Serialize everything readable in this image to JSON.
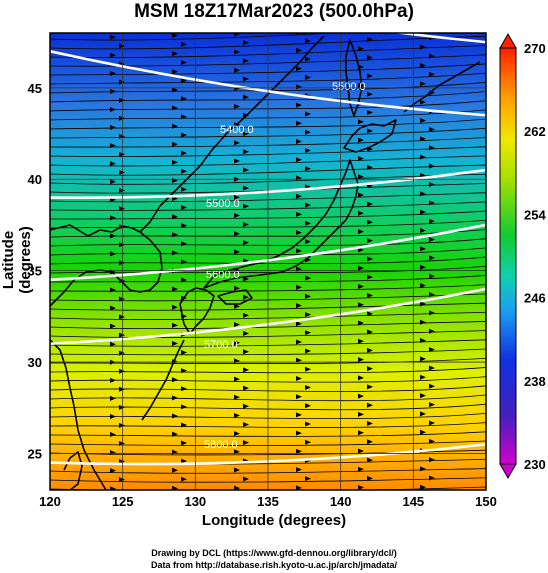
{
  "title": "MSM 18Z17Mar2023 (500.0hPa)",
  "x_axis": {
    "label": "Longitude (degrees)",
    "ticks": [
      "120",
      "125",
      "130",
      "135",
      "140",
      "145",
      "150"
    ]
  },
  "y_axis": {
    "label": "Latitude  (degrees)",
    "ticks": [
      "25",
      "30",
      "35",
      "40",
      "45"
    ]
  },
  "colorbar": {
    "ticks": [
      "230",
      "238",
      "246",
      "254",
      "262",
      "270"
    ],
    "min": 230,
    "max": 270
  },
  "contour_labels": [
    "5500.0",
    "5400.0",
    "5500.0",
    "5600.0",
    "5700.0",
    "5800.0"
  ],
  "credits": {
    "line1": "Drawing by DCL (https://www.gfd-dennou.org/library/dcl/)",
    "line2": "Data from http://database.rish.kyoto-u.ac.jp/arch/jmadata/"
  },
  "map_data": {
    "extent": {
      "lon": [
        120,
        150
      ],
      "lat": [
        23,
        48
      ]
    },
    "field": "temperature (K) shaded, height contours, streamlines",
    "contours": [
      {
        "label": "5500.0",
        "lat_at_west": 51.5,
        "lat_at_east": 47.5
      },
      {
        "label": "5400.0",
        "lat_at_west": 47.0,
        "lat_at_east": 43.5
      },
      {
        "label": "5500.0",
        "lat_at_west": 39.0,
        "lat_at_east": 40.5
      },
      {
        "label": "5600.0",
        "lat_at_west": 34.5,
        "lat_at_east": 37.5
      },
      {
        "label": "5700.0",
        "lat_at_west": 31.0,
        "lat_at_east": 34.0
      },
      {
        "label": "5800.0",
        "lat_at_west": 24.5,
        "lat_at_east": 25.5
      }
    ]
  }
}
